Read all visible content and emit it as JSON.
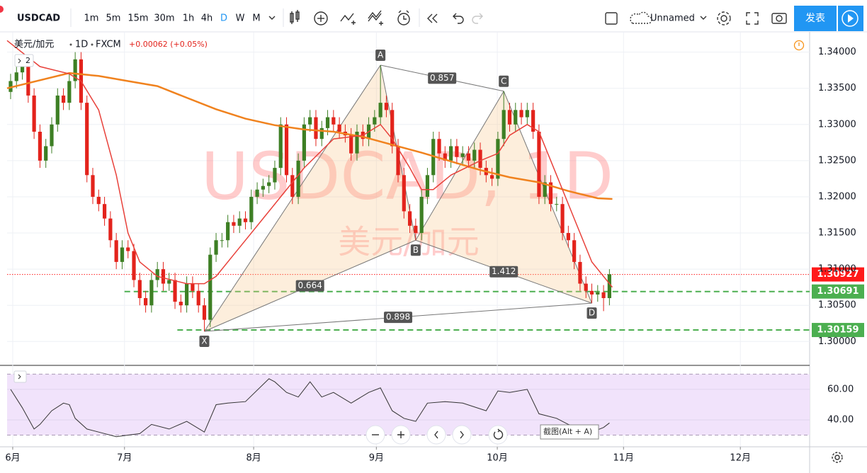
{
  "toolbar": {
    "symbol": "USDCAD",
    "intervals": [
      "1m",
      "5m",
      "15m",
      "30m",
      "1h",
      "4h",
      "D",
      "W",
      "M"
    ],
    "active_interval": "D",
    "layout_name": "Unnamed",
    "publish": "发表"
  },
  "chart_data": [
    {
      "type": "candlestick",
      "legend": {
        "name": "美元/加元",
        "interval": "1D",
        "source": "FXCM",
        "change": "+0.00062 (+0.05%)"
      },
      "hidden_studies": 2,
      "watermark": [
        "USDCAD, 1D",
        "美元/加元"
      ],
      "xlim": [
        -0.6,
        136.1
      ],
      "xticks": [
        {
          "value": 0.36,
          "label": "6月"
        },
        {
          "value": 19.4,
          "label": "7月"
        },
        {
          "value": 41.4,
          "label": "8月"
        },
        {
          "value": 62.3,
          "label": "9月"
        },
        {
          "value": 82.9,
          "label": "10月"
        },
        {
          "value": 104.4,
          "label": "11月"
        },
        {
          "value": 124.3,
          "label": "12月"
        }
      ],
      "ylim": [
        1.2968,
        1.3428
      ],
      "yticks": [
        {
          "value": 1.3,
          "label": "1.30000"
        },
        {
          "value": 1.305,
          "label": "1.30500"
        },
        {
          "value": 1.31,
          "label": "1.31000"
        },
        {
          "value": 1.315,
          "label": "1.31500"
        },
        {
          "value": 1.32,
          "label": "1.32000"
        },
        {
          "value": 1.325,
          "label": "1.32500"
        },
        {
          "value": 1.33,
          "label": "1.33000"
        },
        {
          "value": 1.335,
          "label": "1.33500"
        },
        {
          "value": 1.34,
          "label": "1.34000"
        }
      ],
      "grid": true,
      "up_color": "#3d7f24",
      "down_color": "#e3231c",
      "open": [
        1.3345,
        1.336,
        1.3372,
        1.3385,
        1.334,
        1.329,
        1.325,
        1.327,
        1.33,
        1.334,
        1.333,
        1.336,
        1.339,
        1.333,
        1.323,
        1.32,
        1.319,
        1.317,
        1.314,
        1.311,
        1.313,
        1.3125,
        1.3085,
        1.306,
        1.305,
        1.3085,
        1.31,
        1.308,
        1.3085,
        1.3055,
        1.305,
        1.308,
        1.307,
        1.305,
        1.303,
        1.312,
        1.314,
        1.314,
        1.3165,
        1.316,
        1.317,
        1.3165,
        1.32,
        1.321,
        1.3215,
        1.322,
        1.324,
        1.33,
        1.323,
        1.32,
        1.325,
        1.33,
        1.331,
        1.328,
        1.3295,
        1.331,
        1.33,
        1.329,
        1.3285,
        1.326,
        1.329,
        1.328,
        1.33,
        1.331,
        1.333,
        1.332,
        1.327,
        1.323,
        1.318,
        1.316,
        1.315,
        1.32,
        1.323,
        1.328,
        1.326,
        1.325,
        1.327,
        1.3255,
        1.326,
        1.325,
        1.3265,
        1.324,
        1.323,
        1.3225,
        1.328,
        1.332,
        1.33,
        1.332,
        1.331,
        1.332,
        1.329,
        1.32,
        1.322,
        1.319,
        1.319,
        1.315,
        1.314,
        1.311,
        1.308,
        1.307,
        1.3065,
        1.3068,
        1.306
      ],
      "high": [
        1.337,
        1.3382,
        1.3395,
        1.3395,
        1.335,
        1.33,
        1.328,
        1.331,
        1.335,
        1.335,
        1.337,
        1.34,
        1.34,
        1.334,
        1.324,
        1.321,
        1.32,
        1.318,
        1.315,
        1.314,
        1.314,
        1.3135,
        1.3095,
        1.307,
        1.3095,
        1.311,
        1.311,
        1.3095,
        1.3095,
        1.3065,
        1.309,
        1.309,
        1.308,
        1.306,
        1.313,
        1.315,
        1.315,
        1.3175,
        1.3175,
        1.318,
        1.318,
        1.321,
        1.322,
        1.3225,
        1.323,
        1.325,
        1.331,
        1.331,
        1.324,
        1.326,
        1.331,
        1.332,
        1.332,
        1.3305,
        1.332,
        1.332,
        1.331,
        1.33,
        1.3295,
        1.33,
        1.33,
        1.331,
        1.332,
        1.3382,
        1.334,
        1.333,
        1.328,
        1.324,
        1.319,
        1.317,
        1.321,
        1.324,
        1.329,
        1.329,
        1.327,
        1.328,
        1.328,
        1.327,
        1.327,
        1.3275,
        1.3275,
        1.325,
        1.324,
        1.329,
        1.3346,
        1.333,
        1.333,
        1.333,
        1.333,
        1.333,
        1.33,
        1.323,
        1.323,
        1.32,
        1.32,
        1.316,
        1.315,
        1.312,
        1.309,
        1.308,
        1.3078,
        1.3078,
        1.31
      ],
      "low": [
        1.3335,
        1.335,
        1.3362,
        1.333,
        1.328,
        1.324,
        1.324,
        1.326,
        1.329,
        1.332,
        1.332,
        1.335,
        1.332,
        1.322,
        1.319,
        1.318,
        1.316,
        1.313,
        1.31,
        1.31,
        1.3115,
        1.3075,
        1.305,
        1.304,
        1.304,
        1.3075,
        1.307,
        1.307,
        1.3045,
        1.304,
        1.304,
        1.306,
        1.304,
        1.3014,
        1.302,
        1.311,
        1.313,
        1.313,
        1.315,
        1.315,
        1.3155,
        1.3155,
        1.319,
        1.32,
        1.3205,
        1.321,
        1.323,
        1.322,
        1.319,
        1.319,
        1.324,
        1.329,
        1.327,
        1.327,
        1.3285,
        1.329,
        1.328,
        1.3275,
        1.325,
        1.325,
        1.327,
        1.327,
        1.329,
        1.33,
        1.331,
        1.326,
        1.322,
        1.317,
        1.315,
        1.314,
        1.314,
        1.319,
        1.322,
        1.325,
        1.324,
        1.324,
        1.3245,
        1.3245,
        1.324,
        1.324,
        1.323,
        1.322,
        1.3215,
        1.3215,
        1.327,
        1.329,
        1.329,
        1.33,
        1.33,
        1.328,
        1.319,
        1.319,
        1.318,
        1.318,
        1.314,
        1.313,
        1.31,
        1.307,
        1.306,
        1.3053,
        1.3055,
        1.3042,
        1.305
      ],
      "close": [
        1.336,
        1.3372,
        1.3385,
        1.334,
        1.329,
        1.325,
        1.327,
        1.33,
        1.334,
        1.333,
        1.336,
        1.339,
        1.333,
        1.323,
        1.32,
        1.319,
        1.317,
        1.314,
        1.311,
        1.313,
        1.3125,
        1.3085,
        1.306,
        1.305,
        1.3085,
        1.31,
        1.308,
        1.3085,
        1.3055,
        1.305,
        1.308,
        1.307,
        1.305,
        1.303,
        1.312,
        1.314,
        1.314,
        1.3165,
        1.316,
        1.317,
        1.3165,
        1.32,
        1.321,
        1.3215,
        1.322,
        1.324,
        1.33,
        1.323,
        1.32,
        1.325,
        1.33,
        1.331,
        1.328,
        1.3295,
        1.331,
        1.33,
        1.329,
        1.3285,
        1.326,
        1.329,
        1.328,
        1.33,
        1.331,
        1.333,
        1.332,
        1.327,
        1.323,
        1.318,
        1.316,
        1.315,
        1.32,
        1.323,
        1.328,
        1.326,
        1.325,
        1.327,
        1.3255,
        1.326,
        1.325,
        1.3265,
        1.324,
        1.323,
        1.3225,
        1.328,
        1.332,
        1.33,
        1.332,
        1.331,
        1.332,
        1.329,
        1.32,
        1.322,
        1.319,
        1.319,
        1.315,
        1.314,
        1.311,
        1.308,
        1.307,
        1.3065,
        1.3068,
        1.306,
        1.3093
      ],
      "moving_averages": [
        {
          "color": "#f0821e",
          "width": 2.5,
          "x": [
            -0.6,
            10,
            15,
            20,
            25,
            30,
            35,
            40,
            45,
            50,
            55,
            60,
            65,
            70,
            75,
            80,
            85,
            90,
            95,
            100,
            102.5
          ],
          "values": [
            1.335,
            1.3371,
            1.3367,
            1.336,
            1.3353,
            1.3337,
            1.3321,
            1.3308,
            1.3299,
            1.3293,
            1.329,
            1.3283,
            1.3272,
            1.3261,
            1.3249,
            1.3237,
            1.3227,
            1.322,
            1.3208,
            1.3198,
            1.3197
          ]
        },
        {
          "color": "#e8413a",
          "width": 1.5,
          "x": [
            -0.6,
            5,
            10,
            12,
            15,
            18,
            20,
            22,
            25,
            30,
            33,
            35,
            38,
            40,
            43,
            46,
            50,
            55,
            60,
            63,
            65,
            68,
            70,
            72,
            75,
            80,
            83,
            85,
            88,
            90,
            93,
            96,
            99,
            102.5
          ],
          "values": [
            1.3416,
            1.338,
            1.337,
            1.336,
            1.332,
            1.323,
            1.315,
            1.311,
            1.309,
            1.308,
            1.308,
            1.309,
            1.312,
            1.314,
            1.317,
            1.32,
            1.324,
            1.328,
            1.3285,
            1.33,
            1.328,
            1.324,
            1.321,
            1.321,
            1.323,
            1.325,
            1.326,
            1.3285,
            1.33,
            1.329,
            1.323,
            1.317,
            1.311,
            1.3075
          ]
        }
      ],
      "pattern": {
        "points": [
          {
            "label": "X",
            "x": 33,
            "y": 1.3014,
            "label_position": "below"
          },
          {
            "label": "A",
            "x": 63,
            "y": 1.3382,
            "label_position": "above"
          },
          {
            "label": "B",
            "x": 69,
            "y": 1.314,
            "label_position": "below"
          },
          {
            "label": "C",
            "x": 84,
            "y": 1.3346,
            "label_position": "above"
          },
          {
            "label": "D",
            "x": 99,
            "y": 1.3053,
            "label_position": "below"
          }
        ],
        "ratios": [
          {
            "value": 0.664,
            "from": 0,
            "to": 2
          },
          {
            "value": 0.857,
            "from": 1,
            "to": 3
          },
          {
            "value": 1.412,
            "from": 2,
            "to": 4
          },
          {
            "value": 0.898,
            "from": 0,
            "to": 4
          }
        ]
      },
      "price_lines": [
        {
          "value": 1.30927,
          "color": "#ff1a1a",
          "style": "dotted",
          "from_x": -0.6
        },
        {
          "value": 1.30691,
          "color": "#4caf50",
          "style": "dashed",
          "from_x": 19.4
        },
        {
          "value": 1.30159,
          "color": "#4caf50",
          "style": "dashed",
          "from_x": 28.4
        }
      ]
    },
    {
      "type": "line",
      "color": "#333333",
      "ylim": [
        22.8,
        75.3
      ],
      "yticks": [
        {
          "value": 40,
          "label": "40.00"
        },
        {
          "value": 60,
          "label": "60.00"
        }
      ],
      "bands": [
        30,
        70
      ],
      "band_color": "#f1e3fb",
      "x": [
        0,
        2,
        4,
        5,
        7,
        9,
        10,
        11,
        13,
        15,
        18,
        20,
        22,
        24,
        27,
        30,
        33,
        35,
        37,
        40,
        44,
        45,
        47,
        49,
        51,
        53,
        55,
        58,
        61,
        63,
        65,
        67,
        69,
        71,
        74,
        77,
        81,
        83,
        85,
        88,
        90,
        93,
        95,
        99,
        101,
        102
      ],
      "values": [
        60,
        48,
        34,
        37,
        46,
        51,
        50,
        41,
        34,
        32,
        29,
        30,
        31,
        37,
        34,
        39,
        32,
        50,
        51,
        52,
        67,
        65,
        58,
        55,
        65,
        55,
        58,
        51,
        58,
        61,
        46,
        41,
        39,
        51,
        52,
        51,
        46,
        59,
        58,
        60,
        44,
        41,
        37,
        32,
        35,
        38
      ]
    }
  ],
  "controls": {
    "tooltip": "截图(Alt + A)"
  }
}
